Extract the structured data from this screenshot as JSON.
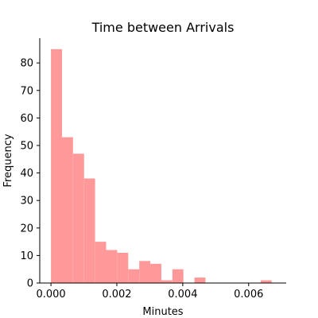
{
  "chart_data": {
    "type": "bar",
    "title": "Time between Arrivals",
    "xlabel": "Minutes",
    "ylabel": "Frequency",
    "bar_color": "#ff9999",
    "bin_width": 0.000335,
    "bins": [
      {
        "x0": 0.0,
        "count": 85
      },
      {
        "x0": 0.000335,
        "count": 53
      },
      {
        "x0": 0.00067,
        "count": 47
      },
      {
        "x0": 0.001005,
        "count": 38
      },
      {
        "x0": 0.00134,
        "count": 15
      },
      {
        "x0": 0.001675,
        "count": 12
      },
      {
        "x0": 0.00201,
        "count": 11
      },
      {
        "x0": 0.002345,
        "count": 5
      },
      {
        "x0": 0.00268,
        "count": 8
      },
      {
        "x0": 0.003015,
        "count": 7
      },
      {
        "x0": 0.00335,
        "count": 1
      },
      {
        "x0": 0.003685,
        "count": 5
      },
      {
        "x0": 0.00402,
        "count": 0
      },
      {
        "x0": 0.004355,
        "count": 2
      },
      {
        "x0": 0.00469,
        "count": 0
      },
      {
        "x0": 0.005025,
        "count": 0
      },
      {
        "x0": 0.00536,
        "count": 0
      },
      {
        "x0": 0.005695,
        "count": 0
      },
      {
        "x0": 0.00603,
        "count": 0
      },
      {
        "x0": 0.006365,
        "count": 1
      }
    ],
    "xlim": [
      -0.00034,
      0.00714
    ],
    "ylim": [
      0,
      89
    ],
    "xticks": [
      {
        "value": 0.0,
        "label": "0.000"
      },
      {
        "value": 0.002,
        "label": "0.002"
      },
      {
        "value": 0.004,
        "label": "0.004"
      },
      {
        "value": 0.006,
        "label": "0.006"
      }
    ],
    "yticks": [
      {
        "value": 0,
        "label": "0"
      },
      {
        "value": 10,
        "label": "10"
      },
      {
        "value": 20,
        "label": "20"
      },
      {
        "value": 30,
        "label": "30"
      },
      {
        "value": 40,
        "label": "40"
      },
      {
        "value": 50,
        "label": "50"
      },
      {
        "value": 60,
        "label": "60"
      },
      {
        "value": 70,
        "label": "70"
      },
      {
        "value": 80,
        "label": "80"
      }
    ],
    "grid": false,
    "top_right_spines": false
  }
}
